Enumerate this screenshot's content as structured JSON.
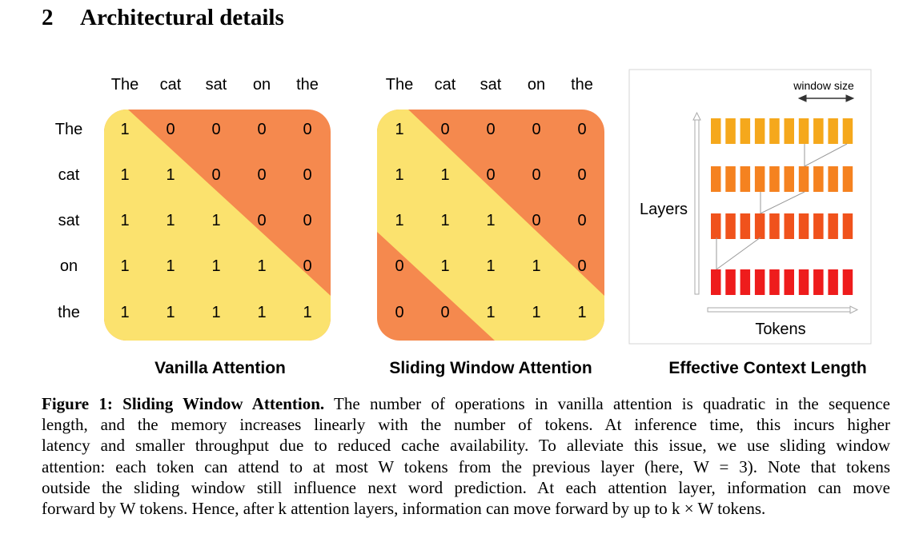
{
  "section": {
    "number": "2",
    "title": "Architectural details"
  },
  "figure": {
    "tokens": [
      "The",
      "cat",
      "sat",
      "on",
      "the"
    ],
    "vanilla": {
      "title": "Vanilla Attention",
      "matrix": [
        [
          1,
          0,
          0,
          0,
          0
        ],
        [
          1,
          1,
          0,
          0,
          0
        ],
        [
          1,
          1,
          1,
          0,
          0
        ],
        [
          1,
          1,
          1,
          1,
          0
        ],
        [
          1,
          1,
          1,
          1,
          1
        ]
      ]
    },
    "sliding": {
      "title": "Sliding Window Attention",
      "matrix": [
        [
          1,
          0,
          0,
          0,
          0
        ],
        [
          1,
          1,
          0,
          0,
          0
        ],
        [
          1,
          1,
          1,
          0,
          0
        ],
        [
          0,
          1,
          1,
          1,
          0
        ],
        [
          0,
          0,
          1,
          1,
          1
        ]
      ]
    },
    "effective": {
      "title": "Effective Context Length",
      "window_label": "window size",
      "layers_label": "Layers",
      "tokens_label": "Tokens",
      "layer_colors": [
        "#f5a81c",
        "#f58220",
        "#f0521c",
        "#ee1c1c"
      ],
      "blocks_per_layer": 10
    },
    "colors": {
      "yellow": "#fbe26e",
      "orange": "#f5894e"
    }
  },
  "caption": {
    "label": "Figure 1: Sliding Window Attention.",
    "lines": [
      " The number of operations in vanilla attention is quadratic in the sequence",
      "length, and the memory increases linearly with the number of tokens.  At inference time, this incurs higher",
      "latency and smaller throughput due to reduced cache availability. To alleviate this issue, we use sliding window",
      "attention: each token can attend to at most W tokens from the previous layer (here, W = 3). Note that tokens",
      "outside the sliding window still influence next word prediction. At each attention layer, information can move",
      "forward by W tokens. Hence, after k attention layers, information can move forward by up to k × W tokens."
    ]
  }
}
